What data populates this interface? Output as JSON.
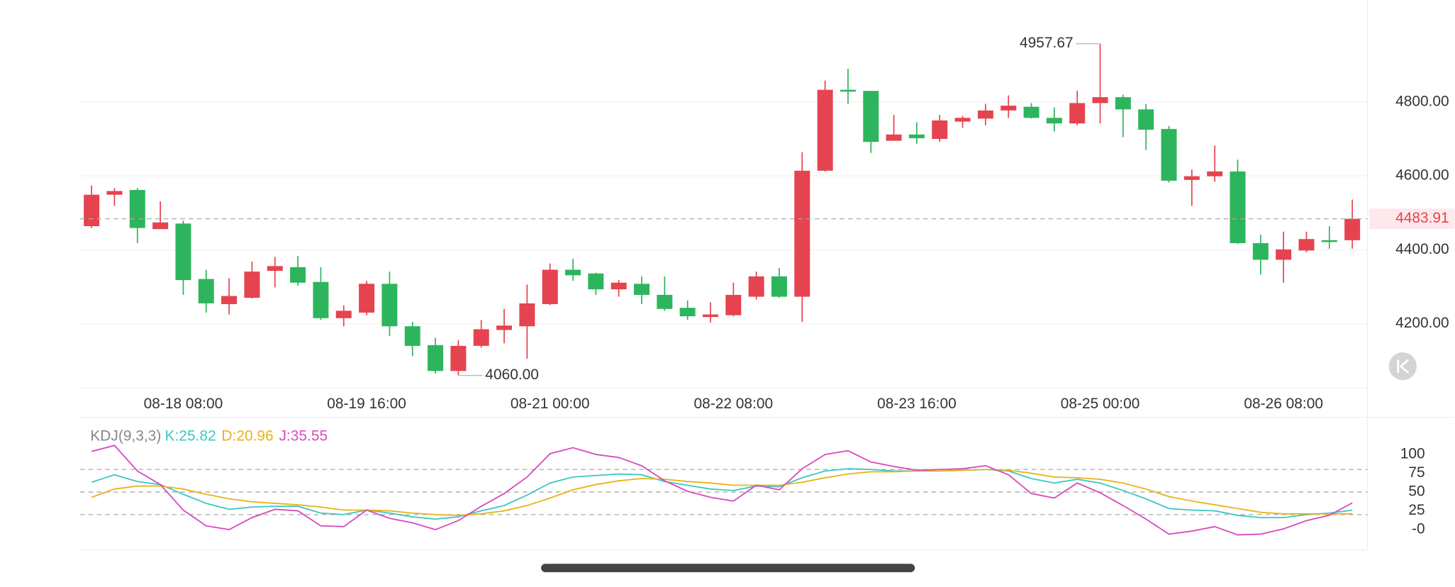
{
  "chart_data": [
    {
      "type": "candlestick",
      "categories": [
        null,
        null,
        null,
        null,
        "08-18 08:00",
        null,
        null,
        null,
        null,
        null,
        null,
        null,
        "08-19 16:00",
        null,
        null,
        null,
        null,
        null,
        null,
        null,
        "08-21 00:00",
        null,
        null,
        null,
        null,
        null,
        null,
        null,
        "08-22 08:00",
        null,
        null,
        null,
        null,
        null,
        null,
        null,
        "08-23 16:00",
        null,
        null,
        null,
        null,
        null,
        null,
        null,
        "08-25 00:00",
        null,
        null,
        null,
        null,
        null,
        null,
        null,
        "08-26 08:00",
        null,
        null,
        null
      ],
      "open": [
        4464,
        4549,
        4562,
        4456,
        4471,
        4321,
        4253,
        4270,
        4343,
        4353,
        4313,
        4215,
        4230,
        4308,
        4193,
        4142,
        4072,
        4140,
        4183,
        4193,
        4253,
        4346,
        4336,
        4293,
        4308,
        4278,
        4243,
        4218,
        4223,
        4273,
        4328,
        4273,
        4614,
        4833,
        4830,
        4695,
        4712,
        4700,
        4747,
        4755,
        4777,
        4787,
        4757,
        4742,
        4797,
        4813,
        4780,
        4727,
        4589,
        4599,
        4612,
        4418,
        4373,
        4398,
        4426,
        4426
      ],
      "high": [
        4574,
        4567,
        4567,
        4531,
        4479,
        4346,
        4323,
        4368,
        4381,
        4383,
        4353,
        4250,
        4316,
        4341,
        4205,
        4162,
        4155,
        4210,
        4240,
        4306,
        4363,
        4376,
        4338,
        4318,
        4328,
        4328,
        4263,
        4258,
        4311,
        4341,
        4351,
        4664,
        4858,
        4890,
        4830,
        4765,
        4745,
        4765,
        4762,
        4795,
        4818,
        4797,
        4785,
        4830,
        4957.67,
        4820,
        4795,
        4735,
        4617,
        4682,
        4644,
        4441,
        4449,
        4449,
        4464,
        4536
      ],
      "low": [
        4459,
        4519,
        4418,
        4456,
        4278,
        4230,
        4225,
        4268,
        4298,
        4303,
        4210,
        4193,
        4223,
        4167,
        4112,
        4065,
        4060,
        4135,
        4147,
        4105,
        4250,
        4316,
        4278,
        4273,
        4253,
        4235,
        4210,
        4203,
        4220,
        4265,
        4270,
        4205,
        4612,
        4795,
        4662,
        4695,
        4687,
        4692,
        4730,
        4737,
        4757,
        4755,
        4720,
        4737,
        4742,
        4705,
        4670,
        4582,
        4519,
        4584,
        4416,
        4333,
        4311,
        4393,
        4403,
        4403
      ],
      "close": [
        4549,
        4559,
        4459,
        4474,
        4318,
        4255,
        4275,
        4341,
        4356,
        4311,
        4215,
        4235,
        4308,
        4193,
        4140,
        4072,
        4140,
        4185,
        4195,
        4255,
        4346,
        4331,
        4293,
        4311,
        4278,
        4240,
        4220,
        4225,
        4278,
        4328,
        4273,
        4614,
        4833,
        4828,
        4692,
        4712,
        4702,
        4750,
        4757,
        4777,
        4790,
        4757,
        4742,
        4797,
        4813,
        4780,
        4725,
        4587,
        4599,
        4612,
        4418,
        4373,
        4401,
        4429,
        4421,
        4483.91
      ],
      "up_color": "#e5434f",
      "down_color": "#2db55d",
      "ylim": [
        4027,
        5076
      ],
      "yticks": [
        {
          "value": 4200,
          "label": "4200.00"
        },
        {
          "value": 4400,
          "label": "4400.00"
        },
        {
          "value": 4600,
          "label": "4600.00"
        },
        {
          "value": 4800,
          "label": "4800.00"
        }
      ],
      "grid": true,
      "last_price": 4483.91,
      "annotations": [
        {
          "value": 4957.67,
          "label": "4957.67"
        },
        {
          "value": 4060,
          "label": "4060.00"
        }
      ]
    },
    {
      "type": "line",
      "title": "KDJ(9,3,3)",
      "series": [
        {
          "name": "K",
          "label": "K:25.82",
          "color": "#3cc8c0",
          "values": [
            63,
            73,
            64,
            60,
            47,
            35,
            27,
            30,
            31,
            31,
            22,
            20,
            26,
            22,
            17,
            14,
            17,
            25,
            32,
            46,
            62,
            70,
            72,
            74,
            73,
            64,
            59,
            54,
            52,
            58,
            57,
            69,
            78,
            81,
            80,
            78,
            78,
            78,
            79,
            80,
            78,
            68,
            62,
            67,
            62,
            52,
            41,
            28,
            26,
            25,
            19,
            16,
            16,
            20,
            22,
            25.82
          ]
        },
        {
          "name": "D",
          "label": "D:20.96",
          "color": "#e8b31a",
          "values": [
            43,
            54,
            58,
            58,
            54,
            47,
            41,
            37,
            35,
            33,
            30,
            26,
            26,
            25,
            22,
            20,
            19,
            21,
            25,
            32,
            42,
            53,
            60,
            65,
            68,
            67,
            64,
            62,
            59,
            59,
            59,
            63,
            69,
            74,
            77,
            77,
            78,
            78,
            79,
            80,
            79,
            75,
            70,
            69,
            67,
            62,
            54,
            44,
            38,
            33,
            28,
            23,
            21,
            21,
            21,
            20.96
          ]
        },
        {
          "name": "J",
          "label": "J:35.55",
          "color": "#d84bbf",
          "values": [
            104,
            112,
            78,
            60,
            26,
            5,
            0,
            16,
            27,
            25,
            5,
            4,
            26,
            15,
            9,
            0,
            12,
            31,
            48,
            70,
            101,
            109,
            100,
            96,
            85,
            65,
            51,
            43,
            38,
            59,
            53,
            81,
            100,
            105,
            90,
            84,
            79,
            80,
            81,
            85,
            73,
            48,
            42,
            62,
            49,
            32,
            14,
            -6,
            -2,
            4,
            -7,
            -6,
            1,
            12,
            19,
            35.55
          ]
        }
      ],
      "ylim": [
        -27,
        147
      ],
      "yticks": [
        {
          "value": 0,
          "label": "-0"
        },
        25,
        50,
        75,
        100
      ],
      "dashed_lines": [
        20,
        50,
        80
      ]
    }
  ]
}
